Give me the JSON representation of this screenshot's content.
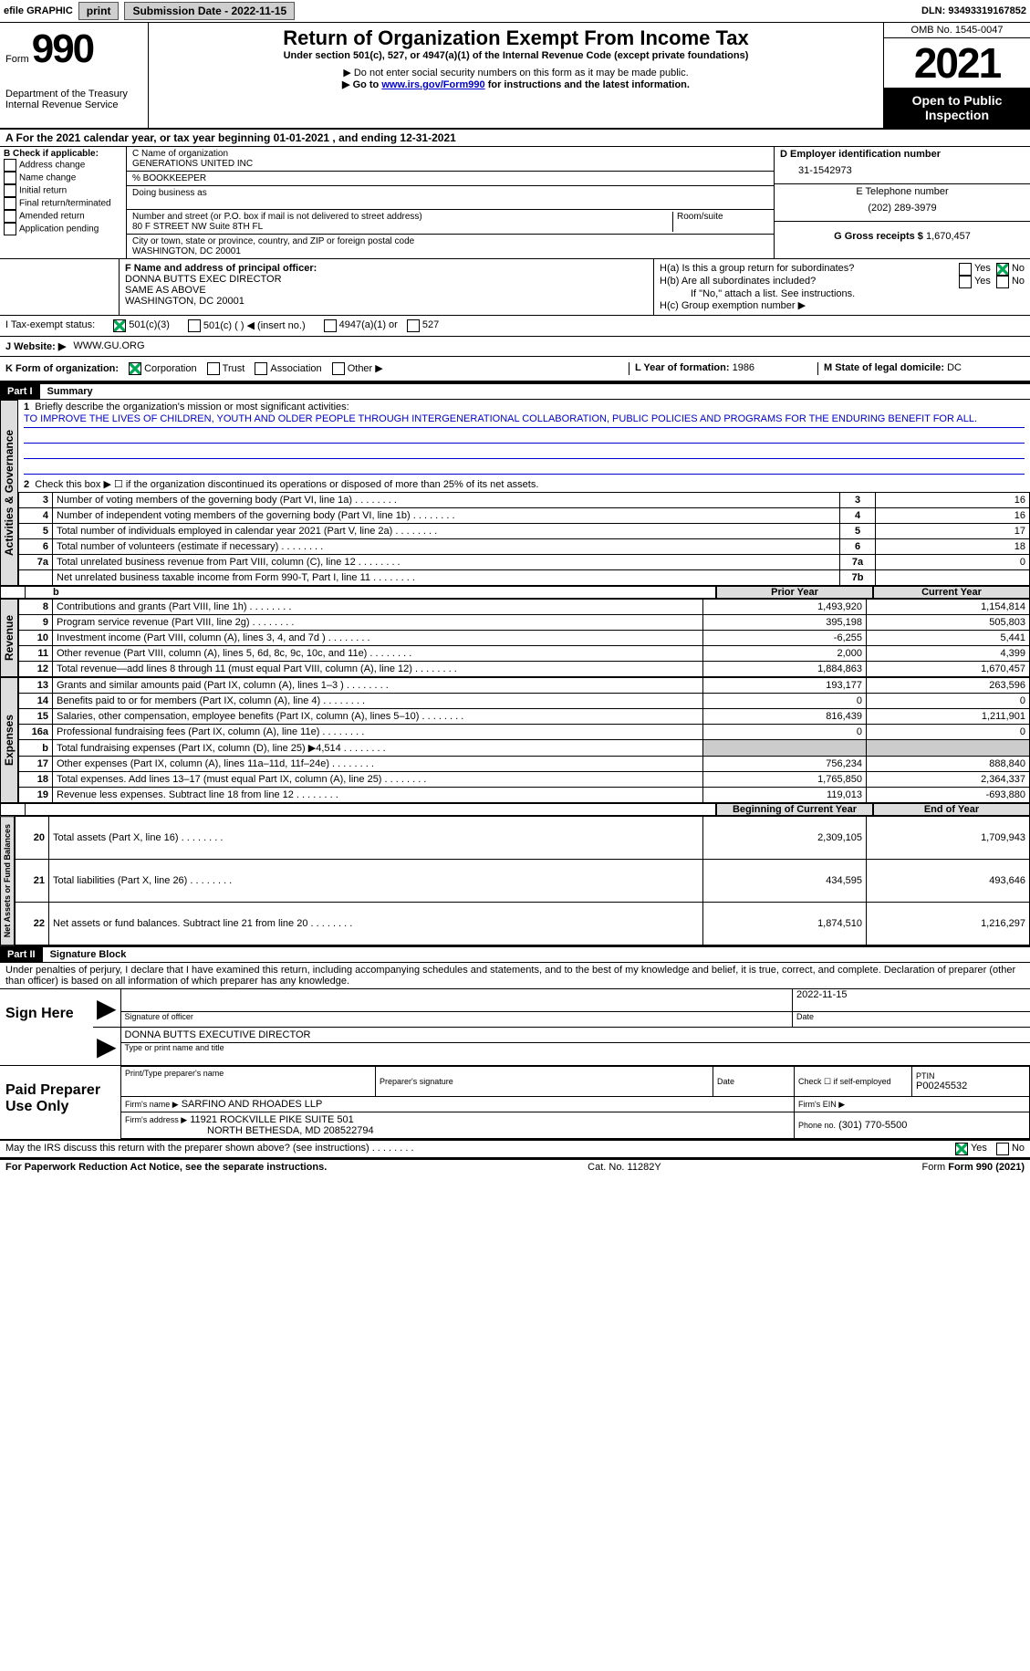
{
  "topbar": {
    "efile_label": "efile GRAPHIC",
    "print_btn": "print",
    "submission_label": "Submission Date - 2022-11-15",
    "dln_label": "DLN: 93493319167852"
  },
  "header": {
    "form_word": "Form",
    "form_number": "990",
    "dept": "Department of the Treasury",
    "irs": "Internal Revenue Service",
    "title": "Return of Organization Exempt From Income Tax",
    "subtitle": "Under section 501(c), 527, or 4947(a)(1) of the Internal Revenue Code (except private foundations)",
    "note1": "▶ Do not enter social security numbers on this form as it may be made public.",
    "note2_pre": "▶ Go to ",
    "note2_link": "www.irs.gov/Form990",
    "note2_post": " for instructions and the latest information.",
    "omb": "OMB No. 1545-0047",
    "year": "2021",
    "open": "Open to Public Inspection"
  },
  "section_a": {
    "text_pre": "A For the 2021 calendar year, or tax year beginning ",
    "begin": "01-01-2021",
    "mid": " , and ending ",
    "end": "12-31-2021"
  },
  "col_b": {
    "header": "B Check if applicable:",
    "opts": [
      "Address change",
      "Name change",
      "Initial return",
      "Final return/terminated",
      "Amended return",
      "Application pending"
    ]
  },
  "col_c": {
    "name_label": "C Name of organization",
    "name": "GENERATIONS UNITED INC",
    "care_of": "% BOOKKEEPER",
    "dba_label": "Doing business as",
    "addr_label": "Number and street (or P.O. box if mail is not delivered to street address)",
    "room_label": "Room/suite",
    "addr": "80 F STREET NW Suite 8TH FL",
    "city_label": "City or town, state or province, country, and ZIP or foreign postal code",
    "city": "WASHINGTON, DC  20001"
  },
  "col_d": {
    "ein_label": "D Employer identification number",
    "ein": "31-1542973",
    "phone_label": "E Telephone number",
    "phone": "(202) 289-3979",
    "gross_label": "G Gross receipts $",
    "gross": "1,670,457"
  },
  "section_f": {
    "label": "F Name and address of principal officer:",
    "l1": "DONNA BUTTS EXEC DIRECTOR",
    "l2": "SAME AS ABOVE",
    "l3": "WASHINGTON, DC  20001"
  },
  "section_h": {
    "ha": "H(a)  Is this a group return for subordinates?",
    "hb": "H(b)  Are all subordinates included?",
    "hb_note": "If \"No,\" attach a list. See instructions.",
    "hc": "H(c)  Group exemption number ▶",
    "yes": "Yes",
    "no": "No"
  },
  "section_i": {
    "label": "I   Tax-exempt status:",
    "opt1": "501(c)(3)",
    "opt2": "501(c) (  ) ◀ (insert no.)",
    "opt3": "4947(a)(1) or",
    "opt4": "527"
  },
  "section_j": {
    "label": "J   Website: ▶",
    "value": "WWW.GU.ORG"
  },
  "section_k": {
    "label": "K Form of organization:",
    "opts": [
      "Corporation",
      "Trust",
      "Association",
      "Other ▶"
    ],
    "l_label": "L Year of formation:",
    "l_val": "1986",
    "m_label": "M State of legal domicile:",
    "m_val": "DC"
  },
  "part1": {
    "part": "Part I",
    "title": "Summary",
    "line1_label": "Briefly describe the organization's mission or most significant activities:",
    "mission": "TO IMPROVE THE LIVES OF CHILDREN, YOUTH AND OLDER PEOPLE THROUGH INTERGENERATIONAL COLLABORATION, PUBLIC POLICIES AND PROGRAMS FOR THE ENDURING BENEFIT FOR ALL.",
    "line2": "Check this box ▶ ☐ if the organization discontinued its operations or disposed of more than 25% of its net assets.",
    "sides": {
      "gov": "Activities & Governance",
      "rev": "Revenue",
      "exp": "Expenses",
      "net": "Net Assets or Fund Balances"
    },
    "gov_rows": [
      {
        "n": "3",
        "t": "Number of voting members of the governing body (Part VI, line 1a)",
        "box": "3",
        "v": "16"
      },
      {
        "n": "4",
        "t": "Number of independent voting members of the governing body (Part VI, line 1b)",
        "box": "4",
        "v": "16"
      },
      {
        "n": "5",
        "t": "Total number of individuals employed in calendar year 2021 (Part V, line 2a)",
        "box": "5",
        "v": "17"
      },
      {
        "n": "6",
        "t": "Total number of volunteers (estimate if necessary)",
        "box": "6",
        "v": "18"
      },
      {
        "n": "7a",
        "t": "Total unrelated business revenue from Part VIII, column (C), line 12",
        "box": "7a",
        "v": "0"
      },
      {
        "n": "",
        "t": "Net unrelated business taxable income from Form 990-T, Part I, line 11",
        "box": "7b",
        "v": ""
      }
    ],
    "col_headers": {
      "py": "Prior Year",
      "cy": "Current Year",
      "boy": "Beginning of Current Year",
      "eoy": "End of Year"
    },
    "rev_rows": [
      {
        "n": "8",
        "t": "Contributions and grants (Part VIII, line 1h)",
        "py": "1,493,920",
        "cy": "1,154,814"
      },
      {
        "n": "9",
        "t": "Program service revenue (Part VIII, line 2g)",
        "py": "395,198",
        "cy": "505,803"
      },
      {
        "n": "10",
        "t": "Investment income (Part VIII, column (A), lines 3, 4, and 7d )",
        "py": "-6,255",
        "cy": "5,441"
      },
      {
        "n": "11",
        "t": "Other revenue (Part VIII, column (A), lines 5, 6d, 8c, 9c, 10c, and 11e)",
        "py": "2,000",
        "cy": "4,399"
      },
      {
        "n": "12",
        "t": "Total revenue—add lines 8 through 11 (must equal Part VIII, column (A), line 12)",
        "py": "1,884,863",
        "cy": "1,670,457"
      }
    ],
    "exp_rows": [
      {
        "n": "13",
        "t": "Grants and similar amounts paid (Part IX, column (A), lines 1–3 )",
        "py": "193,177",
        "cy": "263,596"
      },
      {
        "n": "14",
        "t": "Benefits paid to or for members (Part IX, column (A), line 4)",
        "py": "0",
        "cy": "0"
      },
      {
        "n": "15",
        "t": "Salaries, other compensation, employee benefits (Part IX, column (A), lines 5–10)",
        "py": "816,439",
        "cy": "1,211,901"
      },
      {
        "n": "16a",
        "t": "Professional fundraising fees (Part IX, column (A), line 11e)",
        "py": "0",
        "cy": "0"
      },
      {
        "n": "b",
        "t": "Total fundraising expenses (Part IX, column (D), line 25) ▶4,514",
        "py": "",
        "cy": "",
        "shaded": true
      },
      {
        "n": "17",
        "t": "Other expenses (Part IX, column (A), lines 11a–11d, 11f–24e)",
        "py": "756,234",
        "cy": "888,840"
      },
      {
        "n": "18",
        "t": "Total expenses. Add lines 13–17 (must equal Part IX, column (A), line 25)",
        "py": "1,765,850",
        "cy": "2,364,337"
      },
      {
        "n": "19",
        "t": "Revenue less expenses. Subtract line 18 from line 12",
        "py": "119,013",
        "cy": "-693,880"
      }
    ],
    "net_rows": [
      {
        "n": "20",
        "t": "Total assets (Part X, line 16)",
        "py": "2,309,105",
        "cy": "1,709,943"
      },
      {
        "n": "21",
        "t": "Total liabilities (Part X, line 26)",
        "py": "434,595",
        "cy": "493,646"
      },
      {
        "n": "22",
        "t": "Net assets or fund balances. Subtract line 21 from line 20",
        "py": "1,874,510",
        "cy": "1,216,297"
      }
    ]
  },
  "part2": {
    "part": "Part II",
    "title": "Signature Block",
    "decl": "Under penalties of perjury, I declare that I have examined this return, including accompanying schedules and statements, and to the best of my knowledge and belief, it is true, correct, and complete. Declaration of preparer (other than officer) is based on all information of which preparer has any knowledge.",
    "sign_here": "Sign Here",
    "sig_officer": "Signature of officer",
    "sig_date": "2022-11-15",
    "date_label": "Date",
    "name_title": "DONNA BUTTS  EXECUTIVE DIRECTOR",
    "name_label": "Type or print name and title",
    "paid": "Paid Preparer Use Only",
    "prep_name": "Print/Type preparer's name",
    "prep_sig": "Preparer's signature",
    "prep_date": "Date",
    "self_emp": "Check ☐ if self-employed",
    "ptin_label": "PTIN",
    "ptin": "P00245532",
    "firm_name_label": "Firm's name    ▶",
    "firm_name": "SARFINO AND RHOADES LLP",
    "firm_ein": "Firm's EIN ▶",
    "firm_addr_label": "Firm's address ▶",
    "firm_addr1": "11921 ROCKVILLE PIKE SUITE 501",
    "firm_addr2": "NORTH BETHESDA, MD  208522794",
    "firm_phone_label": "Phone no.",
    "firm_phone": "(301) 770-5500",
    "discuss": "May the IRS discuss this return with the preparer shown above? (see instructions)",
    "yes": "Yes",
    "no": "No"
  },
  "footer": {
    "pra": "For Paperwork Reduction Act Notice, see the separate instructions.",
    "cat": "Cat. No. 11282Y",
    "form": "Form 990 (2021)"
  }
}
